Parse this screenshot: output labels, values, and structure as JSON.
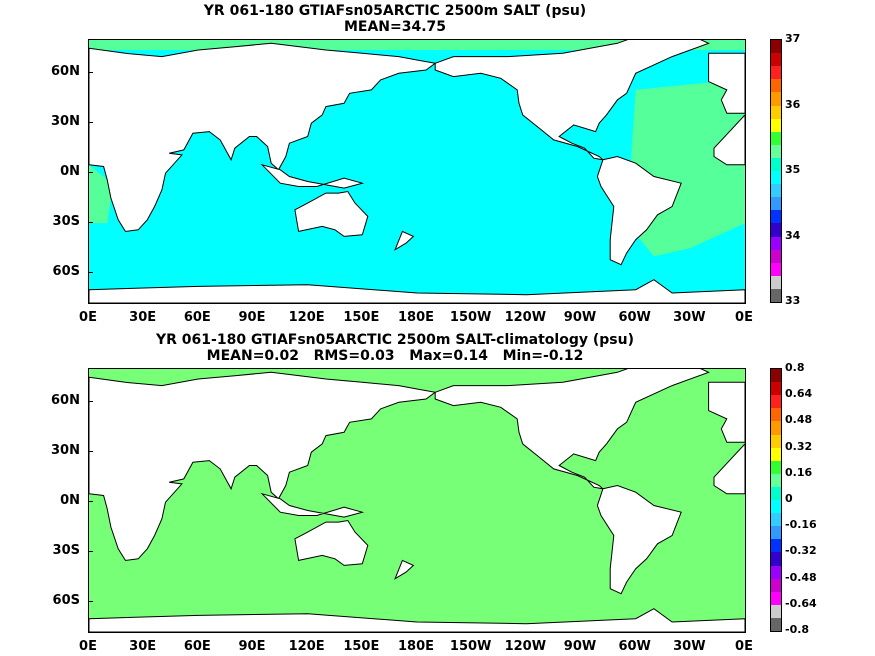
{
  "panels": [
    {
      "title_line1": "YR 061-180 GTIAFsn05ARCTIC 2500m SALT (psu)",
      "title_line2": "MEAN=34.75",
      "colorbar_labels": [
        "37",
        "36",
        "35",
        "34",
        "33"
      ],
      "colorbar_colors": [
        "#8b0000",
        "#cc0000",
        "#ff2020",
        "#ff6600",
        "#ff9900",
        "#ffcc00",
        "#ffff00",
        "#33ff33",
        "#66ff99",
        "#00ffcc",
        "#00ffff",
        "#33ccff",
        "#3399ff",
        "#0033ff",
        "#3300cc",
        "#9900ff",
        "#cc00cc",
        "#ff00ff",
        "#cccccc",
        "#666666"
      ],
      "ocean_color": "#00ffff",
      "atlantic_color": "#55ff99"
    },
    {
      "title_line1": "YR 061-180 GTIAFsn05ARCTIC 2500m SALT-climatology (psu)",
      "title_line2": "MEAN=0.02   RMS=0.03   Max=0.14   Min=-0.12",
      "colorbar_labels": [
        "0.8",
        "0.64",
        "0.48",
        "0.32",
        "0.16",
        "0",
        "-0.16",
        "-0.32",
        "-0.48",
        "-0.64",
        "-0.8"
      ],
      "colorbar_colors": [
        "#8b0000",
        "#cc0000",
        "#ff2020",
        "#ff6600",
        "#ff9900",
        "#ffcc00",
        "#ffff00",
        "#33ff33",
        "#66ff99",
        "#00ffcc",
        "#00ffff",
        "#33ccff",
        "#3399ff",
        "#0033ff",
        "#3300cc",
        "#9900ff",
        "#cc00cc",
        "#ff00ff",
        "#cccccc",
        "#666666"
      ],
      "ocean_color": "#77ff77",
      "atlantic_color": "#77ff77"
    }
  ],
  "x_ticks": [
    "0E",
    "30E",
    "60E",
    "90E",
    "120E",
    "150E",
    "180E",
    "150W",
    "120W",
    "90W",
    "60W",
    "30W",
    "0E"
  ],
  "y_ticks": [
    "60N",
    "30N",
    "0N",
    "30S",
    "60S"
  ]
}
